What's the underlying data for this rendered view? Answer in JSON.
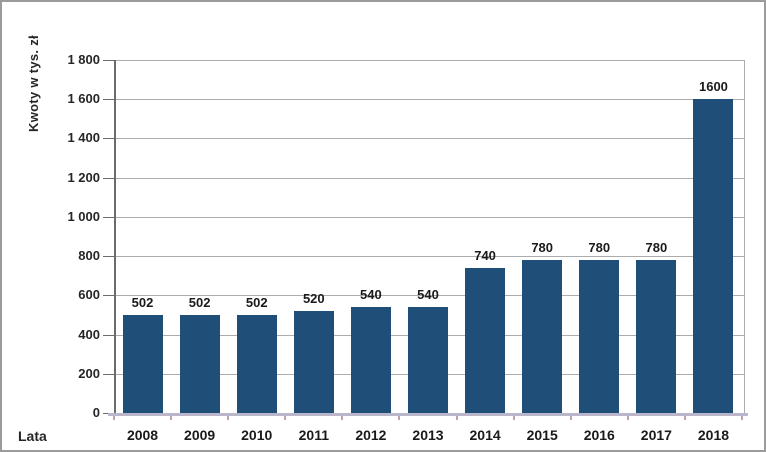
{
  "chart_data": {
    "type": "bar",
    "title": "",
    "categories": [
      "2008",
      "2009",
      "2010",
      "2011",
      "2012",
      "2013",
      "2014",
      "2015",
      "2016",
      "2017",
      "2018"
    ],
    "values": [
      502,
      502,
      502,
      520,
      540,
      540,
      740,
      780,
      780,
      780,
      1600
    ],
    "data_labels": [
      "502",
      "502",
      "502",
      "520",
      "540",
      "540",
      "740",
      "780",
      "780",
      "780",
      "1600"
    ],
    "ylabel": "Kwoty w tys. zł",
    "xlabel": "Lata",
    "ylim": [
      0,
      1800
    ],
    "ytick_interval": 200,
    "ytick_labels": [
      "0",
      "200",
      "400",
      "600",
      "800",
      "1 000",
      "1 200",
      "1 400",
      "1 600",
      "1 800"
    ],
    "grid": true,
    "legend": "none",
    "colors": {
      "bar": "#1F4E79",
      "gridline": "#ACACAC",
      "y_axis_line": "#6B6B6B",
      "x_axis_line": "#BAB6CB",
      "x_tick": "#C0A2AE",
      "label_text": "#1A1A1A",
      "plot_border_right": "#ACACAC"
    }
  }
}
